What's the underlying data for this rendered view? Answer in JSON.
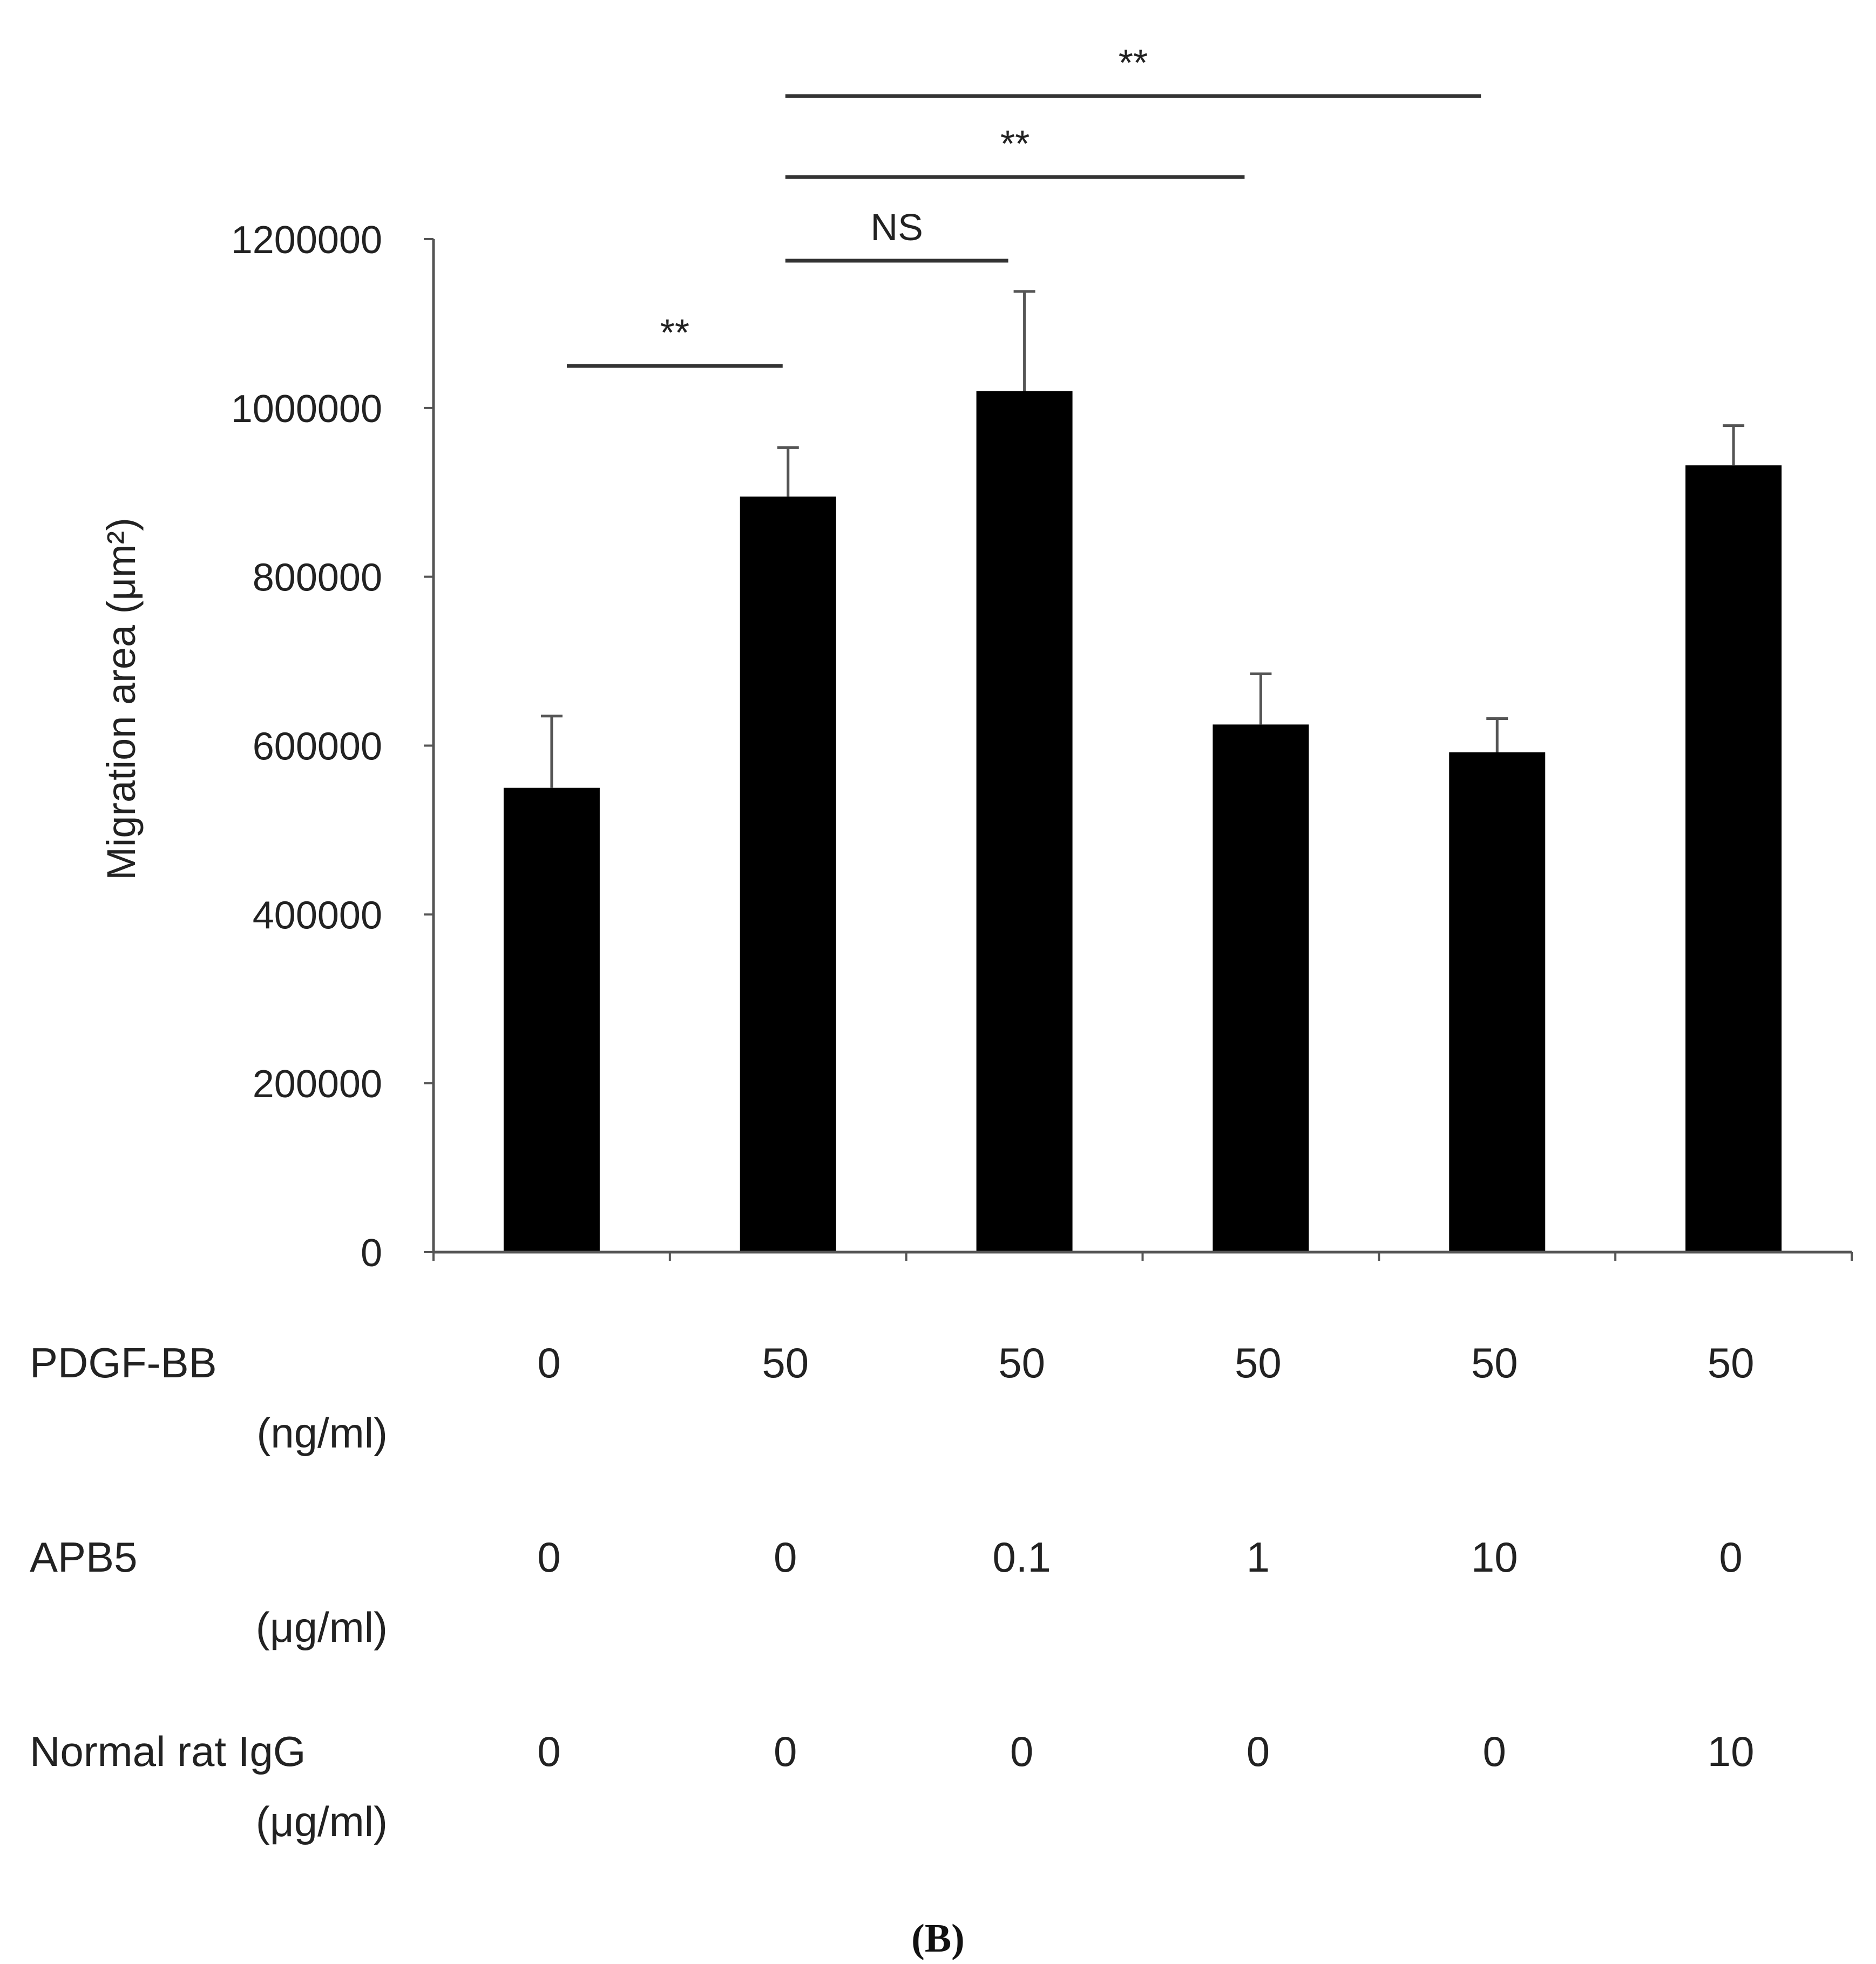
{
  "chart_data": {
    "type": "bar",
    "title": "",
    "xlabel": "",
    "ylabel": "Migration area (μm²)",
    "ylim": [
      0,
      1200000
    ],
    "yticks": [
      "0",
      "200000",
      "400000",
      "600000",
      "800000",
      "1000000",
      "1200000"
    ],
    "ytick_values": [
      0,
      200000,
      400000,
      600000,
      800000,
      1000000,
      1200000
    ],
    "grid": false,
    "bar_color": "#000000",
    "values": [
      550000,
      895000,
      1020000,
      625000,
      592000,
      932000
    ],
    "errors": [
      85000,
      58000,
      118000,
      60000,
      40000,
      47000
    ],
    "conditions": [
      {
        "name": "PDGF-BB",
        "unit": "(ng/ml)",
        "values": [
          "0",
          "50",
          "50",
          "50",
          "50",
          "50"
        ]
      },
      {
        "name": "APB5",
        "unit": "(μg/ml)",
        "values": [
          "0",
          "0",
          "0.1",
          "1",
          "10",
          "0"
        ]
      },
      {
        "name": "Normal rat IgG",
        "unit": "(μg/ml)",
        "values": [
          "0",
          "0",
          "0",
          "0",
          "0",
          "10"
        ]
      }
    ],
    "significance": [
      {
        "from": 0,
        "to": 1,
        "label": "**"
      },
      {
        "from": 1,
        "to": 2,
        "label": "NS"
      },
      {
        "from": 1,
        "to": 3,
        "label": "**"
      },
      {
        "from": 1,
        "to": 4,
        "label": "**"
      }
    ]
  },
  "panel_label": "(B)"
}
